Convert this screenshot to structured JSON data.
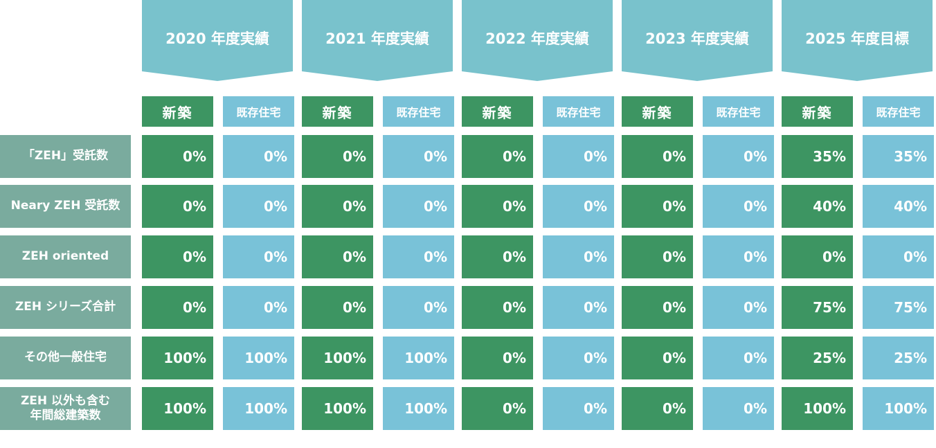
{
  "chart_data": {
    "type": "table",
    "years": [
      "2020 年度実績",
      "2021 年度実績",
      "2022 年度実績",
      "2023 年度実績",
      "2025 年度目標"
    ],
    "sub_columns": [
      "新築",
      "既存住宅"
    ],
    "rows": [
      {
        "label": "「ZEH」受託数",
        "values": [
          "0%",
          "0%",
          "0%",
          "0%",
          "0%",
          "0%",
          "0%",
          "0%",
          "35%",
          "35%"
        ]
      },
      {
        "label": "Neary ZEH 受託数",
        "values": [
          "0%",
          "0%",
          "0%",
          "0%",
          "0%",
          "0%",
          "0%",
          "0%",
          "40%",
          "40%"
        ]
      },
      {
        "label": "ZEH oriented",
        "values": [
          "0%",
          "0%",
          "0%",
          "0%",
          "0%",
          "0%",
          "0%",
          "0%",
          "0%",
          "0%"
        ]
      },
      {
        "label": "ZEH シリーズ合計",
        "values": [
          "0%",
          "0%",
          "0%",
          "0%",
          "0%",
          "0%",
          "0%",
          "0%",
          "75%",
          "75%"
        ]
      },
      {
        "label": "その他一般住宅",
        "values": [
          "100%",
          "100%",
          "100%",
          "100%",
          "0%",
          "0%",
          "0%",
          "0%",
          "25%",
          "25%"
        ]
      },
      {
        "label": "ZEH 以外も含む\n年間総建築数",
        "values": [
          "100%",
          "100%",
          "100%",
          "100%",
          "0%",
          "0%",
          "0%",
          "0%",
          "100%",
          "100%"
        ]
      }
    ]
  },
  "colors": {
    "header": "#79c2cc",
    "new_build": "#3d9562",
    "existing": "#79c2d8",
    "row_label": "#7aab9e"
  }
}
